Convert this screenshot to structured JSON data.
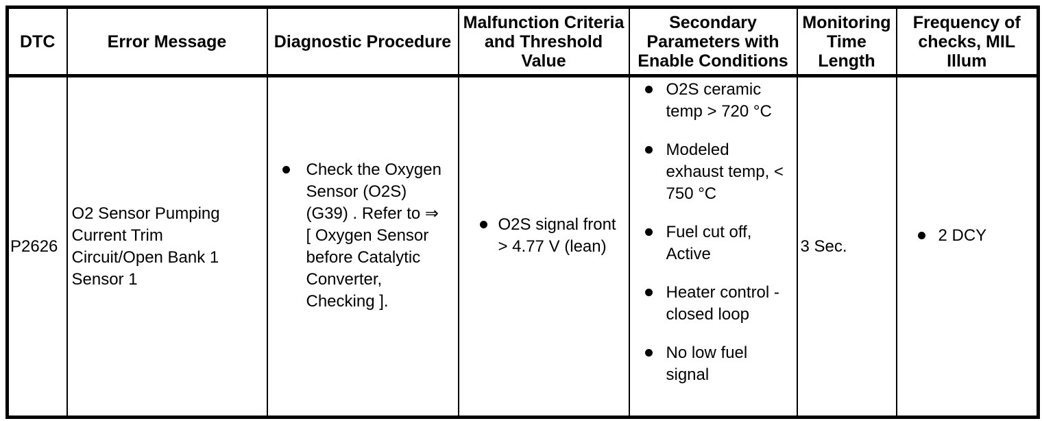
{
  "colors": {
    "background": "#ffffff",
    "border": "#000000",
    "text": "#000000"
  },
  "table": {
    "headers": [
      "DTC",
      "Error Message",
      "Diagnostic Procedure",
      "Malfunction Criteria\nand Threshold\nValue",
      "Secondary\nParameters with\nEnable Conditions",
      "Monitoring\nTime\nLength",
      "Frequency of\nchecks, MIL\nIllum"
    ],
    "row": {
      "dtc": "P2626",
      "error_message": "O2 Sensor Pumping\nCurrent Trim\nCircuit/Open Bank 1\nSensor 1",
      "diagnostic_procedure": [
        "Check the Oxygen Sensor (O2S) (G39) . Refer to ⇒ [ Oxygen Sensor before Catalytic Converter, Checking ]."
      ],
      "malfunction_criteria": [
        "O2S signal front > 4.77 V (lean)"
      ],
      "secondary_parameters": [
        "O2S ceramic temp > 720 °C",
        "Modeled exhaust temp, < 750 °C",
        "Fuel cut off, Active",
        "Heater control - closed loop",
        "No low fuel signal"
      ],
      "monitoring_time_length": "3 Sec.",
      "frequency_of_checks": [
        "2 DCY"
      ]
    }
  }
}
